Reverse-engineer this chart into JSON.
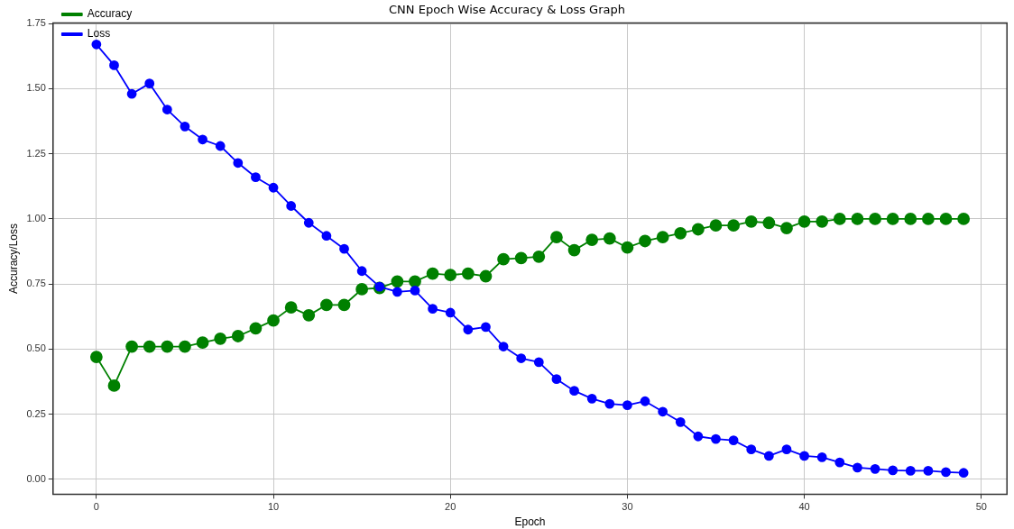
{
  "chart_data": {
    "type": "line",
    "title": "CNN Epoch Wise Accuracy & Loss Graph",
    "xlabel": "Epoch",
    "ylabel": "Accuracy/Loss",
    "x": [
      0,
      1,
      2,
      3,
      4,
      5,
      6,
      7,
      8,
      9,
      10,
      11,
      12,
      13,
      14,
      15,
      16,
      17,
      18,
      19,
      20,
      21,
      22,
      23,
      24,
      25,
      26,
      27,
      28,
      29,
      30,
      31,
      32,
      33,
      34,
      35,
      36,
      37,
      38,
      39,
      40,
      41,
      42,
      43,
      44,
      45,
      46,
      47,
      48,
      49
    ],
    "series": [
      {
        "name": "Accuracy",
        "color": "#008000",
        "values": [
          0.47,
          0.36,
          0.51,
          0.51,
          0.51,
          0.51,
          0.525,
          0.54,
          0.55,
          0.58,
          0.61,
          0.66,
          0.63,
          0.67,
          0.67,
          0.73,
          0.735,
          0.76,
          0.76,
          0.79,
          0.785,
          0.79,
          0.78,
          0.845,
          0.85,
          0.855,
          0.93,
          0.88,
          0.92,
          0.925,
          0.89,
          0.915,
          0.93,
          0.945,
          0.96,
          0.975,
          0.975,
          0.99,
          0.985,
          0.965,
          0.99,
          0.99,
          1.0,
          1.0,
          1.0,
          1.0,
          1.0,
          1.0,
          1.0,
          1.0
        ]
      },
      {
        "name": "Loss",
        "color": "#0000ff",
        "values": [
          1.67,
          1.59,
          1.48,
          1.52,
          1.42,
          1.355,
          1.305,
          1.28,
          1.215,
          1.16,
          1.12,
          1.05,
          0.985,
          0.935,
          0.885,
          0.8,
          0.74,
          0.72,
          0.725,
          0.655,
          0.64,
          0.575,
          0.585,
          0.51,
          0.465,
          0.45,
          0.385,
          0.34,
          0.31,
          0.29,
          0.285,
          0.3,
          0.26,
          0.22,
          0.165,
          0.155,
          0.15,
          0.115,
          0.09,
          0.115,
          0.09,
          0.085,
          0.065,
          0.045,
          0.04,
          0.035,
          0.033,
          0.033,
          0.028,
          0.025
        ]
      }
    ],
    "xlim": [
      -2.45,
      51.45
    ],
    "xticks": [
      0,
      10,
      20,
      30,
      40,
      50
    ],
    "ylim": [
      -0.057,
      1.752
    ],
    "yticks": [
      {
        "value": 0,
        "label": "0.00"
      },
      {
        "value": 0.25,
        "label": "0.25"
      },
      {
        "value": 0.5,
        "label": "0.50"
      },
      {
        "value": 0.75,
        "label": "0.75"
      },
      {
        "value": 1,
        "label": "1.00"
      },
      {
        "value": 1.25,
        "label": "1.25"
      },
      {
        "value": 1.5,
        "label": "1.50"
      },
      {
        "value": 1.75,
        "label": "1.75"
      }
    ],
    "grid": true,
    "legend": "top left",
    "marker": "circle",
    "line_style": "solid"
  }
}
